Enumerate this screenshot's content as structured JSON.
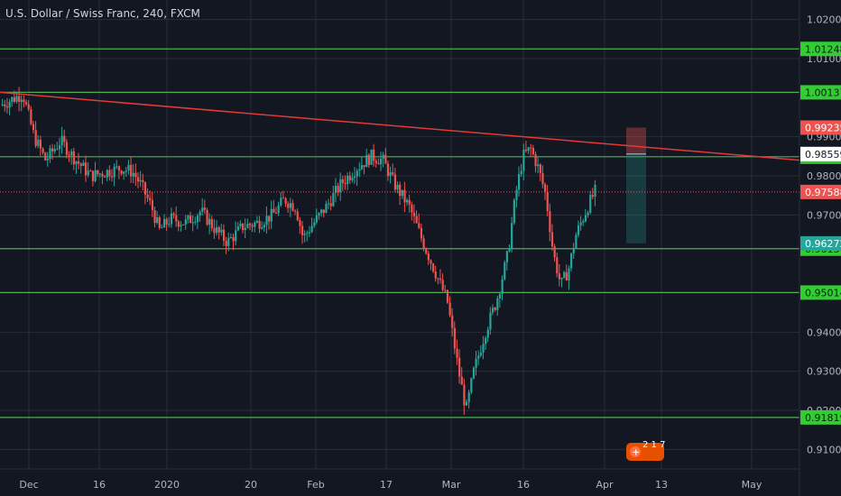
{
  "window": {
    "title": "U.S. Dollar / Swiss Franc, 240, FXCM"
  },
  "colors": {
    "background": "#131722",
    "grid": "#2a2e39",
    "level_line": "#4caf50",
    "level_badge": "#33cc33",
    "trend_line": "#e53935",
    "price_line": "#ef5350",
    "candle_up": "#26a69a",
    "candle_down": "#ef5350",
    "stop_zone": "#ef5350",
    "target_zone": "#26a69a",
    "entry_badge": "#ffffff",
    "target_badge": "#26a69a"
  },
  "chart_data": {
    "type": "candlestick",
    "symbol": "U.S. Dollar / Swiss Franc",
    "interval": "240",
    "source": "FXCM",
    "x_ticks": [
      "Dec",
      "16",
      "2020",
      "20",
      "Feb",
      "17",
      "Mar",
      "16",
      "Apr",
      "13",
      "May"
    ],
    "y_ticks": [
      "1.02000",
      "1.01000",
      "0.99000",
      "0.98000",
      "0.97000",
      "0.94000",
      "0.93000",
      "0.92000",
      "0.91000"
    ],
    "ylim": [
      0.905,
      1.025
    ],
    "horizontal_levels": [
      {
        "value": 1.01248,
        "label": "1.01248"
      },
      {
        "value": 1.00137,
        "label": "1.00137"
      },
      {
        "value": 0.98489,
        "label": "0.98489"
      },
      {
        "value": 0.96136,
        "label": "0.96136"
      },
      {
        "value": 0.95014,
        "label": "0.95014"
      },
      {
        "value": 0.91819,
        "label": "0.91819"
      }
    ],
    "trendline": {
      "start": [
        0,
        1.00137
      ],
      "end": [
        1,
        0.984
      ]
    },
    "current_price": {
      "value": 0.97588,
      "label": "0.97588"
    },
    "position": {
      "stop": {
        "value": 0.99235,
        "label": "0.99235"
      },
      "entry": {
        "value": 0.98559,
        "label": "0.98559"
      },
      "target": {
        "value": 0.96272,
        "label": "0.96272"
      }
    },
    "price_path": [
      [
        0.0,
        0.998
      ],
      [
        0.03,
        1.001
      ],
      [
        0.045,
        0.99
      ],
      [
        0.06,
        0.984
      ],
      [
        0.08,
        0.989
      ],
      [
        0.1,
        0.984
      ],
      [
        0.12,
        0.98
      ],
      [
        0.14,
        0.981
      ],
      [
        0.16,
        0.982
      ],
      [
        0.175,
        0.981
      ],
      [
        0.185,
        0.978
      ],
      [
        0.2,
        0.972
      ],
      [
        0.21,
        0.966
      ],
      [
        0.225,
        0.969
      ],
      [
        0.245,
        0.968
      ],
      [
        0.265,
        0.971
      ],
      [
        0.285,
        0.966
      ],
      [
        0.3,
        0.963
      ],
      [
        0.32,
        0.967
      ],
      [
        0.34,
        0.968
      ],
      [
        0.36,
        0.97
      ],
      [
        0.375,
        0.974
      ],
      [
        0.39,
        0.972
      ],
      [
        0.4,
        0.964
      ],
      [
        0.41,
        0.967
      ],
      [
        0.43,
        0.972
      ],
      [
        0.45,
        0.978
      ],
      [
        0.47,
        0.982
      ],
      [
        0.49,
        0.985
      ],
      [
        0.505,
        0.984
      ],
      [
        0.52,
        0.978
      ],
      [
        0.54,
        0.972
      ],
      [
        0.56,
        0.962
      ],
      [
        0.575,
        0.955
      ],
      [
        0.59,
        0.948
      ],
      [
        0.605,
        0.93
      ],
      [
        0.615,
        0.92
      ],
      [
        0.625,
        0.93
      ],
      [
        0.64,
        0.94
      ],
      [
        0.655,
        0.948
      ],
      [
        0.67,
        0.96
      ],
      [
        0.68,
        0.975
      ],
      [
        0.69,
        0.985
      ],
      [
        0.7,
        0.987
      ],
      [
        0.71,
        0.982
      ],
      [
        0.72,
        0.975
      ],
      [
        0.73,
        0.96
      ],
      [
        0.74,
        0.952
      ],
      [
        0.75,
        0.956
      ],
      [
        0.76,
        0.965
      ],
      [
        0.775,
        0.972
      ],
      [
        0.785,
        0.976
      ]
    ]
  },
  "badge": {
    "icon": "flag-icon",
    "count": "2 1 7"
  }
}
